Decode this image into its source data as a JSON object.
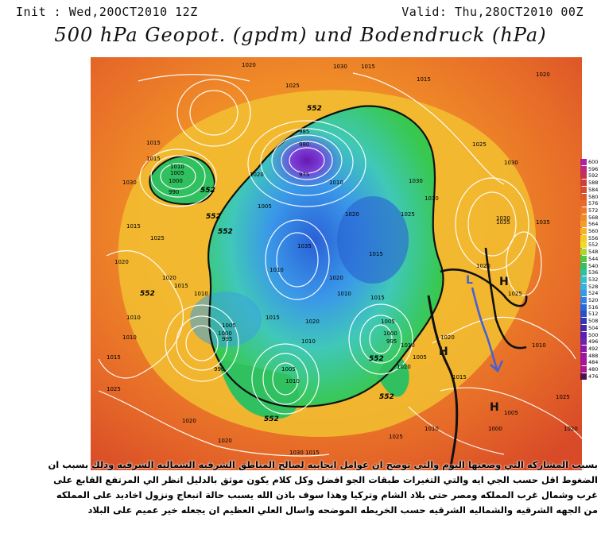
{
  "header": {
    "init": "Init : Wed,20OCT2010 12Z",
    "valid": "Valid: Thu,28OCT2010 00Z",
    "title": "500 hPa Geopot. (gpdm) und Bodendruck (hPa)"
  },
  "colors": {
    "cold_core": "#7b2fc8",
    "blue": "#2a6fe0",
    "cyan": "#4fc8e8",
    "green": "#2ec84a",
    "yellow": "#f0d020",
    "orange": "#f08020",
    "red": "#d84020"
  },
  "colorbar": {
    "labels": [
      "600",
      "596",
      "592",
      "588",
      "584",
      "580",
      "576",
      "572",
      "568",
      "564",
      "560",
      "556",
      "552",
      "548",
      "544",
      "540",
      "536",
      "532",
      "528",
      "524",
      "520",
      "516",
      "512",
      "508",
      "504",
      "500",
      "496",
      "492",
      "488",
      "484",
      "480",
      "476"
    ],
    "colors": [
      "#b020a0",
      "#c02878",
      "#c83050",
      "#d03c38",
      "#d84a30",
      "#e05a2a",
      "#e86a28",
      "#ee7a28",
      "#f08a28",
      "#f29e28",
      "#f4b428",
      "#f4ca28",
      "#eedc28",
      "#a8d830",
      "#50c840",
      "#30c060",
      "#30c0a0",
      "#30c0c8",
      "#38b0e0",
      "#3898e8",
      "#3080e8",
      "#2868d8",
      "#2850c8",
      "#3038b8",
      "#4028b0",
      "#5820b0",
      "#7020b0",
      "#8818a8",
      "#9818a0",
      "#a01898",
      "#a81890",
      "#501050"
    ]
  },
  "map_labels": {
    "isobars": [
      "1015",
      "1020",
      "1025",
      "1030",
      "1015",
      "1020",
      "1015",
      "1020",
      "1030",
      "1015",
      "1010",
      "1005",
      "1000",
      "990",
      "985",
      "980",
      "975",
      "1010",
      "1005",
      "1020",
      "1025",
      "1030",
      "1035",
      "1015",
      "1010",
      "1020",
      "1005",
      "1000",
      "995",
      "1010",
      "1015",
      "1020",
      "1025",
      "990",
      "1005",
      "1010",
      "1015",
      "1020",
      "1010",
      "1005",
      "1000",
      "995",
      "1010",
      "1005",
      "1020",
      "1015",
      "1010",
      "1025",
      "1020",
      "1015",
      "1010",
      "1030",
      "1020",
      "1025",
      "1010",
      "1015",
      "1035",
      "1030",
      "1025",
      "1020",
      "1010",
      "1005",
      "1000",
      "1025",
      "1020",
      "1030",
      "1035",
      "1010",
      "1015",
      "1020",
      "1020",
      "1025",
      "1030",
      "1015"
    ],
    "contour_552": [
      "552",
      "552",
      "552",
      "552",
      "552",
      "552",
      "552",
      "552"
    ],
    "pressure_centers": [
      "L",
      "H",
      "H",
      "H"
    ]
  },
  "caption": {
    "lines": [
      "بسبب المشاركه التي وضعتها اليوم والتي توضح ان عوامل ايجابيه لصالح المناطق الشرقيه الشماليه الشرقيه وذلك بسبب ان",
      "الضغوط اقل حسب الجي ايه والتي التغيرات طبقات الجو افضل وكل كلام يكون موثق بالدليل انظر الي المرتفع القابع على",
      "غرب وشمال غرب المملكه ومصر حتى بلاد الشام وتركيا وهذا سوف باذن الله يسبب حالة انبعاج ونزول اخاديد على المملكه",
      "من الجهه الشرقيه والشماليه الشرقيه حسب الخريطه الموضحه واسال العلي العظيم ان يجعله خير عميم على البلاد"
    ]
  }
}
